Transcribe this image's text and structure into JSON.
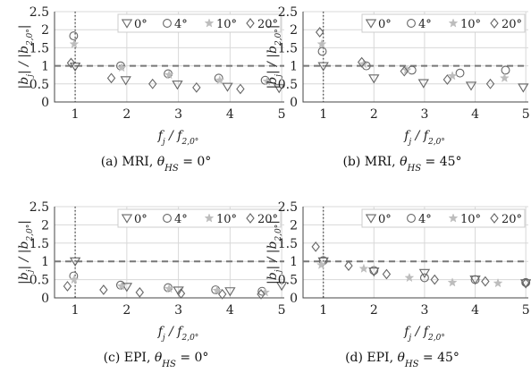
{
  "chart_data": [
    {
      "type": "scatter",
      "xlabel": "f_j / f_2,0°",
      "ylabel": "|b_j| / |b_2,0°|",
      "xlim": [
        0.6,
        5.05
      ],
      "ylim": [
        0,
        2.5
      ],
      "xticks": [
        "1",
        "2",
        "3",
        "4",
        "5"
      ],
      "yticks": [
        "0",
        "0.5",
        "1",
        "1.5",
        "2",
        "2.5"
      ],
      "grid": true,
      "legend": "top-right",
      "reference_line_y": 1,
      "reference_line_x": 1,
      "caption": "(a) MRI, θ_HS = 0°",
      "series": [
        {
          "name": "0°",
          "marker": "triangle-down",
          "x": [
            1.0,
            1.98,
            2.98,
            3.95,
            4.95
          ],
          "y": [
            0.98,
            0.6,
            0.48,
            0.42,
            0.38
          ]
        },
        {
          "name": "4°",
          "marker": "circle",
          "x": [
            0.97,
            1.88,
            2.8,
            3.78,
            4.68
          ],
          "y": [
            1.83,
            1.0,
            0.78,
            0.66,
            0.6
          ]
        },
        {
          "name": "10°",
          "marker": "star",
          "x": [
            0.98,
            1.9,
            2.82,
            3.8,
            4.72
          ],
          "y": [
            1.6,
            0.95,
            0.75,
            0.6,
            0.57
          ]
        },
        {
          "name": "20°",
          "marker": "diamond",
          "x": [
            0.92,
            1.7,
            2.5,
            3.35,
            4.2
          ],
          "y": [
            1.08,
            0.66,
            0.5,
            0.4,
            0.36
          ]
        }
      ]
    },
    {
      "type": "scatter",
      "xlabel": "f_j / f_2,0°",
      "ylabel": "|b_j| / |b_2,0°|",
      "xlim": [
        0.6,
        5.05
      ],
      "ylim": [
        0,
        2.5
      ],
      "xticks": [
        "1",
        "2",
        "3",
        "4",
        "5"
      ],
      "yticks": [
        "0",
        "0.5",
        "1",
        "1.5",
        "2",
        "2.5"
      ],
      "grid": true,
      "legend": "top-right",
      "reference_line_y": 1,
      "reference_line_x": 1,
      "caption": "(b) MRI, θ_HS = 45°",
      "series": [
        {
          "name": "0°",
          "marker": "triangle-down",
          "x": [
            1.0,
            2.0,
            2.98,
            3.92,
            4.95
          ],
          "y": [
            0.99,
            0.65,
            0.52,
            0.45,
            0.4
          ]
        },
        {
          "name": "4°",
          "marker": "circle",
          "x": [
            0.98,
            1.85,
            2.75,
            3.7,
            4.6
          ],
          "y": [
            1.4,
            1.0,
            0.88,
            0.8,
            0.88
          ]
        },
        {
          "name": "10°",
          "marker": "star",
          "x": [
            0.97,
            1.8,
            2.65,
            3.55,
            4.58
          ],
          "y": [
            1.6,
            1.05,
            0.88,
            0.72,
            0.66
          ]
        },
        {
          "name": "20°",
          "marker": "diamond",
          "x": [
            0.93,
            1.76,
            2.6,
            3.45,
            4.3
          ],
          "y": [
            1.93,
            1.1,
            0.85,
            0.62,
            0.5
          ]
        }
      ]
    },
    {
      "type": "scatter",
      "xlabel": "f_j / f_2,0°",
      "ylabel": "|b_j| / |b_2,0°|",
      "xlim": [
        0.6,
        5.05
      ],
      "ylim": [
        0,
        2.5
      ],
      "xticks": [
        "1",
        "2",
        "3",
        "4",
        "5"
      ],
      "yticks": [
        "0",
        "0.5",
        "1",
        "1.5",
        "2",
        "2.5"
      ],
      "grid": true,
      "legend": "top-right",
      "reference_line_y": 1,
      "reference_line_x": 1,
      "caption": "(c) EPI, θ_HS = 0°",
      "series": [
        {
          "name": "0°",
          "marker": "triangle-down",
          "x": [
            1.0,
            2.0,
            3.0,
            4.0,
            5.0
          ],
          "y": [
            1.0,
            0.3,
            0.2,
            0.18,
            0.33
          ]
        },
        {
          "name": "4°",
          "marker": "circle",
          "x": [
            0.97,
            1.88,
            2.8,
            3.72,
            4.62
          ],
          "y": [
            0.6,
            0.35,
            0.28,
            0.22,
            0.18
          ]
        },
        {
          "name": "10°",
          "marker": "star",
          "x": [
            0.98,
            1.9,
            2.82,
            3.75,
            4.68
          ],
          "y": [
            0.5,
            0.32,
            0.25,
            0.2,
            0.15
          ]
        },
        {
          "name": "20°",
          "marker": "diamond",
          "x": [
            0.85,
            1.55,
            2.25,
            3.05,
            3.85,
            4.6
          ],
          "y": [
            0.32,
            0.22,
            0.15,
            0.12,
            0.1,
            0.1
          ]
        }
      ]
    },
    {
      "type": "scatter",
      "xlabel": "f_j / f_2,0°",
      "ylabel": "|b_j| / |b_2,0°|",
      "xlim": [
        0.6,
        5.05
      ],
      "ylim": [
        0,
        2.5
      ],
      "xticks": [
        "1",
        "2",
        "3",
        "4",
        "5"
      ],
      "yticks": [
        "0",
        "0.5",
        "1",
        "1.5",
        "2",
        "2.5"
      ],
      "grid": true,
      "legend": "top-right",
      "reference_line_y": 1,
      "reference_line_x": 1,
      "caption": "(d) EPI, θ_HS = 45°",
      "series": [
        {
          "name": "0°",
          "marker": "triangle-down",
          "x": [
            1.0,
            2.0,
            3.0,
            4.0,
            5.0
          ],
          "y": [
            1.0,
            0.72,
            0.68,
            0.5,
            0.4
          ]
        },
        {
          "name": "4°",
          "marker": "circle",
          "x": [
            1.0,
            2.0,
            3.0,
            4.0,
            5.0
          ],
          "y": [
            1.02,
            0.75,
            0.55,
            0.5,
            0.42
          ]
        },
        {
          "name": "10°",
          "marker": "star",
          "x": [
            0.96,
            1.8,
            2.7,
            3.55,
            4.45
          ],
          "y": [
            0.9,
            0.8,
            0.55,
            0.42,
            0.4
          ]
        },
        {
          "name": "20°",
          "marker": "diamond",
          "x": [
            0.85,
            1.5,
            2.25,
            3.2,
            4.2,
            5.0
          ],
          "y": [
            1.4,
            0.88,
            0.65,
            0.5,
            0.45,
            0.4
          ]
        }
      ]
    }
  ]
}
